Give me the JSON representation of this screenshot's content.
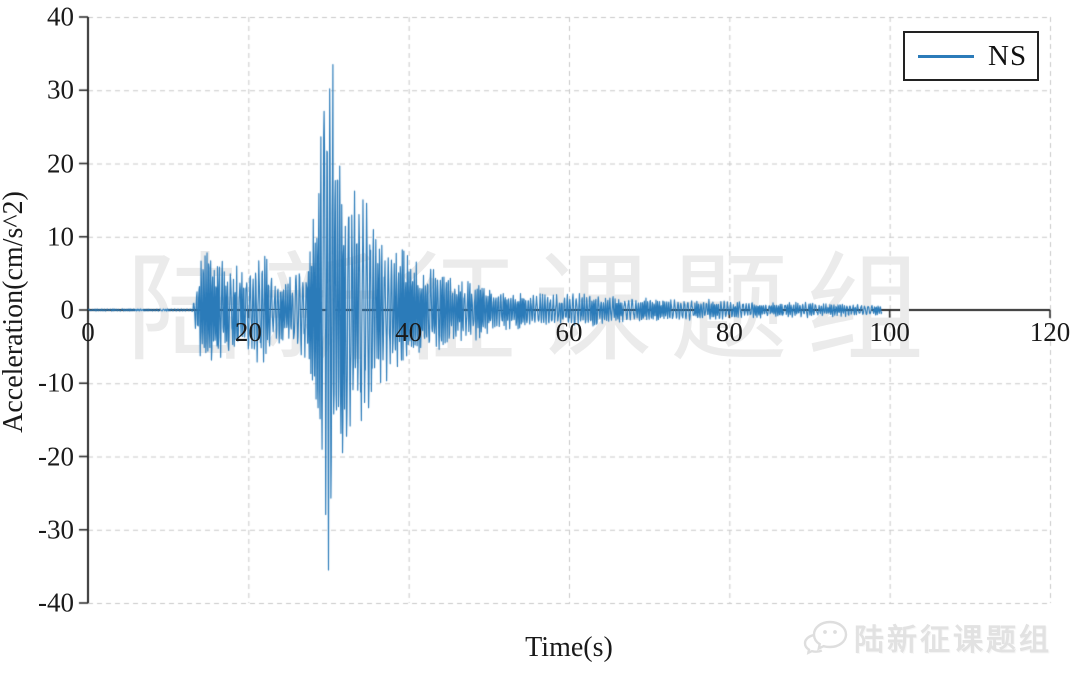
{
  "watermark": {
    "text": "陆新征课题组"
  },
  "footer": {
    "brand": "陆新征课题组",
    "icon": "wechat-icon"
  },
  "chart_data": {
    "type": "line",
    "title": "",
    "xlabel": "Time(s)",
    "ylabel": "Acceleration(cm/s^2)",
    "xlim": [
      0,
      120
    ],
    "ylim": [
      -40,
      40
    ],
    "x_ticks": [
      0,
      20,
      40,
      60,
      80,
      100,
      120
    ],
    "y_ticks": [
      40,
      30,
      20,
      10,
      0,
      -10,
      -20,
      -30,
      -40
    ],
    "grid": {
      "show": true,
      "style": "dashed",
      "color": "#c9c9c9"
    },
    "axis_color": "#2b2b2b",
    "legend": [
      {
        "label": "NS",
        "color": "#2b7bb9"
      }
    ],
    "legend_position": "upper right",
    "series": [
      {
        "name": "NS",
        "color": "#2b7bb9",
        "signal": {
          "description": "seismic acceleration record, quiet until ~13s, main shock ~28-34s, decaying coda to 99s",
          "t_start": 0,
          "t_end": 99,
          "dt": 0.05,
          "peak_max": {
            "t": 30.55,
            "a": 33.5
          },
          "peak_min": {
            "t": 30.0,
            "a": -35.5
          },
          "envelope_t": [
            0,
            13,
            13.3,
            14,
            15,
            16,
            17,
            18,
            19,
            20,
            21,
            22,
            23,
            24,
            25,
            26,
            27,
            27.5,
            28,
            28.5,
            29,
            29.5,
            30,
            30.5,
            31,
            31.5,
            32,
            32.5,
            33,
            33.5,
            34,
            35,
            36,
            37,
            38,
            39,
            40,
            41,
            42,
            43,
            44,
            45,
            46,
            47,
            48,
            50,
            52,
            54,
            56,
            58,
            60,
            62,
            63,
            64,
            66,
            68,
            70,
            72,
            75,
            78,
            80,
            83,
            86,
            89,
            92,
            95,
            97,
            99
          ],
          "envelope_a": [
            0.15,
            0.15,
            2,
            7.5,
            8.5,
            9,
            6.5,
            6,
            6.5,
            6,
            7,
            8,
            5,
            4.5,
            5,
            5.5,
            7,
            9,
            13,
            18,
            26,
            29,
            35.5,
            33.5,
            28,
            26,
            22,
            24,
            18,
            16,
            15,
            16,
            12,
            10,
            9,
            10,
            8,
            6.5,
            6,
            7,
            5.5,
            5,
            4.5,
            4,
            4.5,
            3.2,
            2.8,
            2.6,
            2.3,
            2.1,
            2.4,
            2.2,
            2.8,
            2.0,
            1.8,
            1.6,
            1.8,
            1.5,
            1.4,
            1.5,
            1.2,
            1.1,
            1.0,
            1.1,
            0.9,
            0.9,
            0.8,
            0.7
          ]
        }
      }
    ]
  }
}
